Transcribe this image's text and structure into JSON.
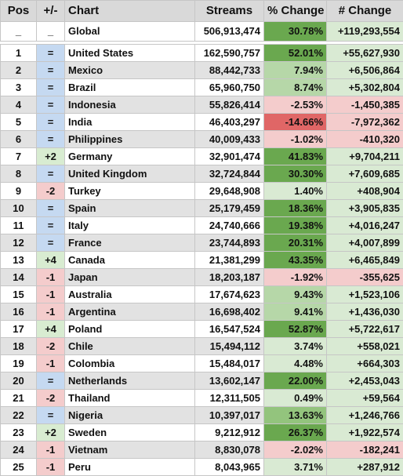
{
  "header": {
    "pos": "Pos",
    "plusminus": "+/-",
    "chart": "Chart",
    "streams": "Streams",
    "pct_change": "% Change",
    "num_change": "# Change"
  },
  "colors": {
    "row_odd": "#ffffff",
    "row_even": "#e2e2e2",
    "move_same": "#c5d9f1",
    "move_up": "#d8ecd1",
    "move_down": "#f4cccc",
    "pct_big_up": "#6aa84f",
    "pct_up_mid": "#93c47d",
    "pct_up_small": "#b6d7a8",
    "pct_up_tiny": "#d9ead3",
    "pct_down_small": "#f4cccc",
    "pct_down_big": "#e06666",
    "num_up": "#d9ead3",
    "num_down": "#f4cccc"
  },
  "global": {
    "pos": "_",
    "move": "_",
    "chart": "Global",
    "streams": "506,913,474",
    "pct": "30.78%",
    "num": "+119,293,554"
  },
  "rows": [
    {
      "pos": "1",
      "move": "=",
      "chart": "United States",
      "streams": "162,590,757",
      "pct": "52.01%",
      "num": "+55,627,930"
    },
    {
      "pos": "2",
      "move": "=",
      "chart": "Mexico",
      "streams": "88,442,733",
      "pct": "7.94%",
      "num": "+6,506,864"
    },
    {
      "pos": "3",
      "move": "=",
      "chart": "Brazil",
      "streams": "65,960,750",
      "pct": "8.74%",
      "num": "+5,302,804"
    },
    {
      "pos": "4",
      "move": "=",
      "chart": "Indonesia",
      "streams": "55,826,414",
      "pct": "-2.53%",
      "num": "-1,450,385"
    },
    {
      "pos": "5",
      "move": "=",
      "chart": "India",
      "streams": "46,403,297",
      "pct": "-14.66%",
      "num": "-7,972,362"
    },
    {
      "pos": "6",
      "move": "=",
      "chart": "Philippines",
      "streams": "40,009,433",
      "pct": "-1.02%",
      "num": "-410,320"
    },
    {
      "pos": "7",
      "move": "+2",
      "chart": "Germany",
      "streams": "32,901,474",
      "pct": "41.83%",
      "num": "+9,704,211"
    },
    {
      "pos": "8",
      "move": "=",
      "chart": "United Kingdom",
      "streams": "32,724,844",
      "pct": "30.30%",
      "num": "+7,609,685"
    },
    {
      "pos": "9",
      "move": "-2",
      "chart": "Turkey",
      "streams": "29,648,908",
      "pct": "1.40%",
      "num": "+408,904"
    },
    {
      "pos": "10",
      "move": "=",
      "chart": "Spain",
      "streams": "25,179,459",
      "pct": "18.36%",
      "num": "+3,905,835"
    },
    {
      "pos": "11",
      "move": "=",
      "chart": "Italy",
      "streams": "24,740,666",
      "pct": "19.38%",
      "num": "+4,016,247"
    },
    {
      "pos": "12",
      "move": "=",
      "chart": "France",
      "streams": "23,744,893",
      "pct": "20.31%",
      "num": "+4,007,899"
    },
    {
      "pos": "13",
      "move": "+4",
      "chart": "Canada",
      "streams": "21,381,299",
      "pct": "43.35%",
      "num": "+6,465,849"
    },
    {
      "pos": "14",
      "move": "-1",
      "chart": "Japan",
      "streams": "18,203,187",
      "pct": "-1.92%",
      "num": "-355,625"
    },
    {
      "pos": "15",
      "move": "-1",
      "chart": "Australia",
      "streams": "17,674,623",
      "pct": "9.43%",
      "num": "+1,523,106"
    },
    {
      "pos": "16",
      "move": "-1",
      "chart": "Argentina",
      "streams": "16,698,402",
      "pct": "9.41%",
      "num": "+1,436,030"
    },
    {
      "pos": "17",
      "move": "+4",
      "chart": "Poland",
      "streams": "16,547,524",
      "pct": "52.87%",
      "num": "+5,722,617"
    },
    {
      "pos": "18",
      "move": "-2",
      "chart": "Chile",
      "streams": "15,494,112",
      "pct": "3.74%",
      "num": "+558,021"
    },
    {
      "pos": "19",
      "move": "-1",
      "chart": "Colombia",
      "streams": "15,484,017",
      "pct": "4.48%",
      "num": "+664,303"
    },
    {
      "pos": "20",
      "move": "=",
      "chart": "Netherlands",
      "streams": "13,602,147",
      "pct": "22.00%",
      "num": "+2,453,043"
    },
    {
      "pos": "21",
      "move": "-2",
      "chart": "Thailand",
      "streams": "12,311,505",
      "pct": "0.49%",
      "num": "+59,564"
    },
    {
      "pos": "22",
      "move": "=",
      "chart": "Nigeria",
      "streams": "10,397,017",
      "pct": "13.63%",
      "num": "+1,246,766"
    },
    {
      "pos": "23",
      "move": "+2",
      "chart": "Sweden",
      "streams": "9,212,912",
      "pct": "26.37%",
      "num": "+1,922,574"
    },
    {
      "pos": "24",
      "move": "-1",
      "chart": "Vietnam",
      "streams": "8,830,078",
      "pct": "-2.02%",
      "num": "-182,241"
    },
    {
      "pos": "25",
      "move": "-1",
      "chart": "Peru",
      "streams": "8,043,965",
      "pct": "3.71%",
      "num": "+287,912"
    }
  ]
}
